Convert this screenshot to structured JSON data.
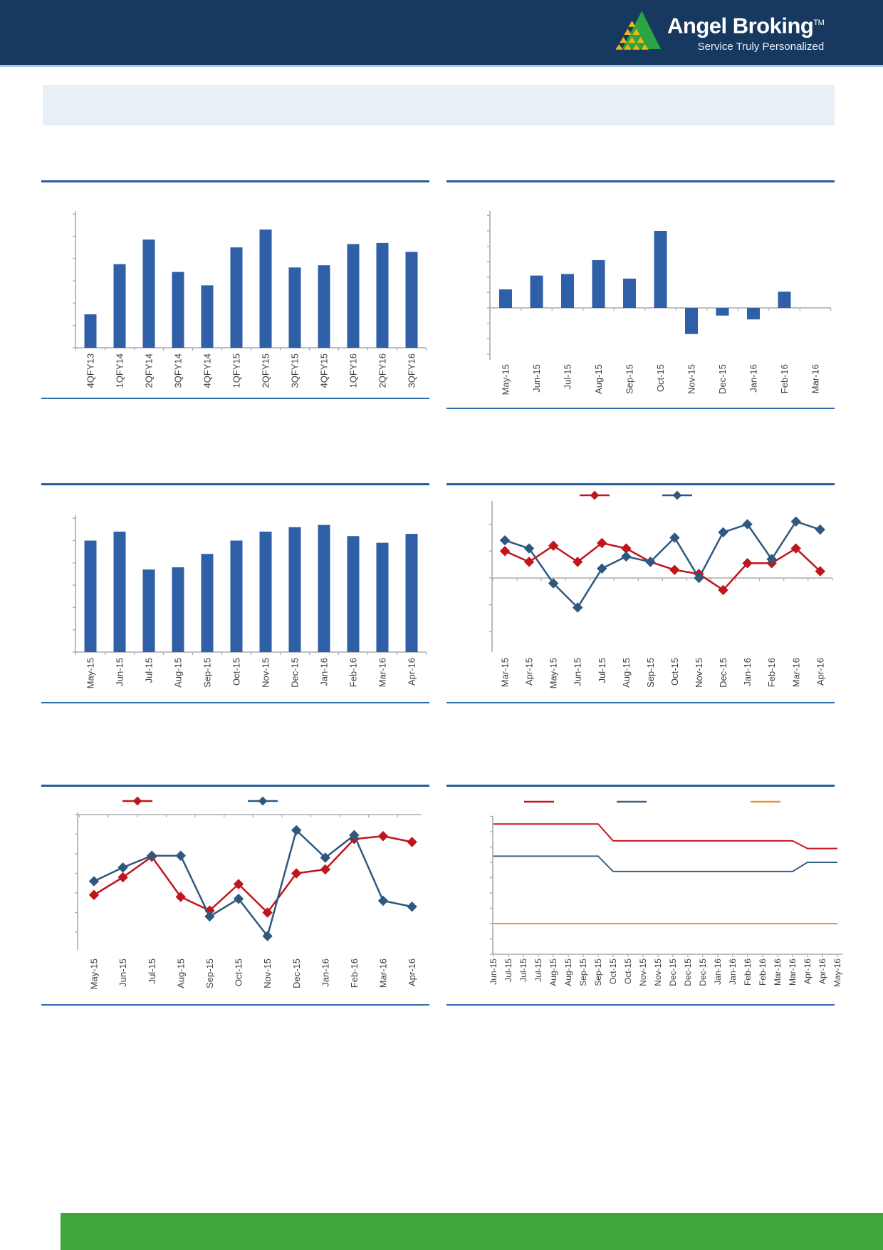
{
  "header": {
    "brand": "Angel Broking",
    "trademark": "TM",
    "tagline": "Service Truly Personalized"
  },
  "banner": {
    "visible_text": ""
  },
  "footer": {
    "visible_text": ""
  },
  "colors": {
    "header_bg": "#17395F",
    "header_underline": "#A9CBE8",
    "banner_bg": "#E9EFF6",
    "exhibit_rule": "#275D9F",
    "bottom_rule": "#2F6BAD",
    "axis_gray": "#A8ACAF",
    "label_gray": "#3F3F3F",
    "bar_blue": "#2F5FA6",
    "line_blue": "#2E5880",
    "line_red": "#C0151C",
    "line_orange": "#E8953C",
    "footer_green": "#3EA63B",
    "logo_green": "#2BA443",
    "logo_yellow": "#F2B50F"
  },
  "chart_data": [
    {
      "id": "A",
      "type": "bar",
      "position": "row1-left",
      "title": "",
      "y_axis_labels_visible": false,
      "y_unit": "axis-ticks (unlabeled)",
      "ylim": [
        0,
        6.2
      ],
      "categories": [
        "4QFY13",
        "1QFY14",
        "2QFY14",
        "3QFY14",
        "4QFY14",
        "1QFY15",
        "2QFY15",
        "3QFY15",
        "4QFY15",
        "1QFY16",
        "2QFY16",
        "3QFY16"
      ],
      "series": [
        {
          "name": "blue-bars",
          "color": "#2F5FA6",
          "values": [
            1.5,
            3.75,
            4.85,
            3.4,
            2.8,
            4.5,
            5.3,
            3.6,
            3.7,
            4.65,
            4.7,
            4.3
          ]
        }
      ]
    },
    {
      "id": "B",
      "type": "bar",
      "position": "row1-right",
      "title": "",
      "y_axis_labels_visible": false,
      "y_unit": "axis-ticks (unlabeled)",
      "ylim": [
        -3.4,
        6.3
      ],
      "categories": [
        "May-15",
        "Jun-15",
        "Jul-15",
        "Aug-15",
        "Sep-15",
        "Oct-15",
        "Nov-15",
        "Dec-15",
        "Jan-16",
        "Feb-16",
        "Mar-16"
      ],
      "series": [
        {
          "name": "blue-bars",
          "color": "#2F5FA6",
          "values": [
            1.2,
            2.1,
            2.2,
            3.1,
            1.9,
            5.0,
            -1.7,
            -0.5,
            -0.75,
            1.05,
            0
          ]
        }
      ]
    },
    {
      "id": "C",
      "type": "bar",
      "position": "row2-left",
      "title": "",
      "y_axis_labels_visible": false,
      "y_unit": "axis-ticks (unlabeled)",
      "ylim": [
        0,
        6.2
      ],
      "categories": [
        "May-15",
        "Jun-15",
        "Jul-15",
        "Aug-15",
        "Sep-15",
        "Oct-15",
        "Nov-15",
        "Dec-15",
        "Jan-16",
        "Feb-16",
        "Mar-16",
        "Apr-16"
      ],
      "series": [
        {
          "name": "blue-bars",
          "color": "#2F5FA6",
          "values": [
            5.0,
            5.4,
            3.7,
            3.8,
            4.4,
            5.0,
            5.4,
            5.6,
            5.7,
            5.2,
            4.9,
            5.3
          ]
        }
      ]
    },
    {
      "id": "D",
      "type": "line",
      "position": "row2-right",
      "title": "",
      "y_axis_labels_visible": false,
      "y_unit": "axis-ticks (unlabeled)",
      "ylim": [
        -2.9,
        2.9
      ],
      "legend": {
        "position": "top",
        "labels_visible": false
      },
      "categories": [
        "Mar-15",
        "Apr-15",
        "May-15",
        "Jun-15",
        "Jul-15",
        "Aug-15",
        "Sep-15",
        "Oct-15",
        "Nov-15",
        "Dec-15",
        "Jan-16",
        "Feb-16",
        "Mar-16",
        "Apr-16"
      ],
      "series": [
        {
          "name": "red-diamond-line",
          "color": "#C0151C",
          "marker": "diamond",
          "values": [
            1.0,
            0.6,
            1.2,
            0.6,
            1.3,
            1.1,
            0.6,
            0.3,
            0.15,
            -0.45,
            0.55,
            0.55,
            1.1,
            0.25
          ]
        },
        {
          "name": "blue-diamond-line",
          "color": "#2E5880",
          "marker": "diamond",
          "values": [
            1.4,
            1.1,
            -0.2,
            -1.1,
            0.35,
            0.8,
            0.6,
            1.5,
            0.0,
            1.7,
            2.0,
            0.7,
            2.1,
            1.8
          ]
        }
      ]
    },
    {
      "id": "E",
      "type": "line",
      "position": "row3-left",
      "title": "",
      "y_axis_labels_visible": false,
      "y_unit": "axis-ticks (unlabeled)",
      "ylim": [
        -6.9,
        0
      ],
      "legend": {
        "position": "top",
        "labels_visible": false
      },
      "categories": [
        "May-15",
        "Jun-15",
        "Jul-15",
        "Aug-15",
        "Sep-15",
        "Oct-15",
        "Nov-15",
        "Dec-15",
        "Jan-16",
        "Feb-16",
        "Mar-16",
        "Apr-16"
      ],
      "series": [
        {
          "name": "red-diamond-line",
          "color": "#C0151C",
          "marker": "diamond",
          "values": [
            -4.1,
            -3.2,
            -2.15,
            -4.2,
            -4.9,
            -3.55,
            -5.0,
            -3.0,
            -2.8,
            -1.25,
            -1.1,
            -1.4
          ]
        },
        {
          "name": "blue-diamond-line",
          "color": "#2E5880",
          "marker": "diamond",
          "values": [
            -3.4,
            -2.7,
            -2.1,
            -2.1,
            -5.2,
            -4.3,
            -6.2,
            -0.8,
            -2.2,
            -1.05,
            -4.4,
            -4.7
          ]
        }
      ]
    },
    {
      "id": "F",
      "type": "line",
      "position": "row3-right",
      "title": "",
      "y_axis_labels_visible": false,
      "y_unit": "axis-ticks (unlabeled)",
      "ylim": [
        0,
        9.1
      ],
      "legend": {
        "position": "top",
        "labels_visible": false
      },
      "categories": [
        "Jun-15",
        "Jul-15",
        "Jul-15",
        "Jul-15",
        "Aug-15",
        "Aug-15",
        "Sep-15",
        "Sep-15",
        "Oct-15",
        "Oct-15",
        "Nov-15",
        "Nov-15",
        "Dec-15",
        "Dec-15",
        "Dec-15",
        "Jan-16",
        "Jan-16",
        "Feb-16",
        "Feb-16",
        "Mar-16",
        "Mar-16",
        "Apr-16",
        "Apr-16",
        "May-16"
      ],
      "series": [
        {
          "name": "red-step-line",
          "color": "#C81418",
          "marker": "none",
          "values": [
            8.5,
            8.5,
            8.5,
            8.5,
            8.5,
            8.5,
            8.5,
            8.5,
            7.4,
            7.4,
            7.4,
            7.4,
            7.4,
            7.4,
            7.4,
            7.4,
            7.4,
            7.4,
            7.4,
            7.4,
            7.4,
            6.9,
            6.9,
            6.9
          ]
        },
        {
          "name": "blue-step-line",
          "color": "#3A6186",
          "marker": "none",
          "values": [
            6.4,
            6.4,
            6.4,
            6.4,
            6.4,
            6.4,
            6.4,
            6.4,
            5.4,
            5.4,
            5.4,
            5.4,
            5.4,
            5.4,
            5.4,
            5.4,
            5.4,
            5.4,
            5.4,
            5.4,
            5.4,
            6.0,
            6.0,
            6.0
          ]
        },
        {
          "name": "orange-flat-line",
          "color": "#E8953C",
          "marker": "none",
          "values": [
            2.0,
            2.0,
            2.0,
            2.0,
            2.0,
            2.0,
            2.0,
            2.0,
            2.0,
            2.0,
            2.0,
            2.0,
            2.0,
            2.0,
            2.0,
            2.0,
            2.0,
            2.0,
            2.0,
            2.0,
            2.0,
            2.0,
            2.0,
            2.0
          ]
        }
      ]
    }
  ]
}
